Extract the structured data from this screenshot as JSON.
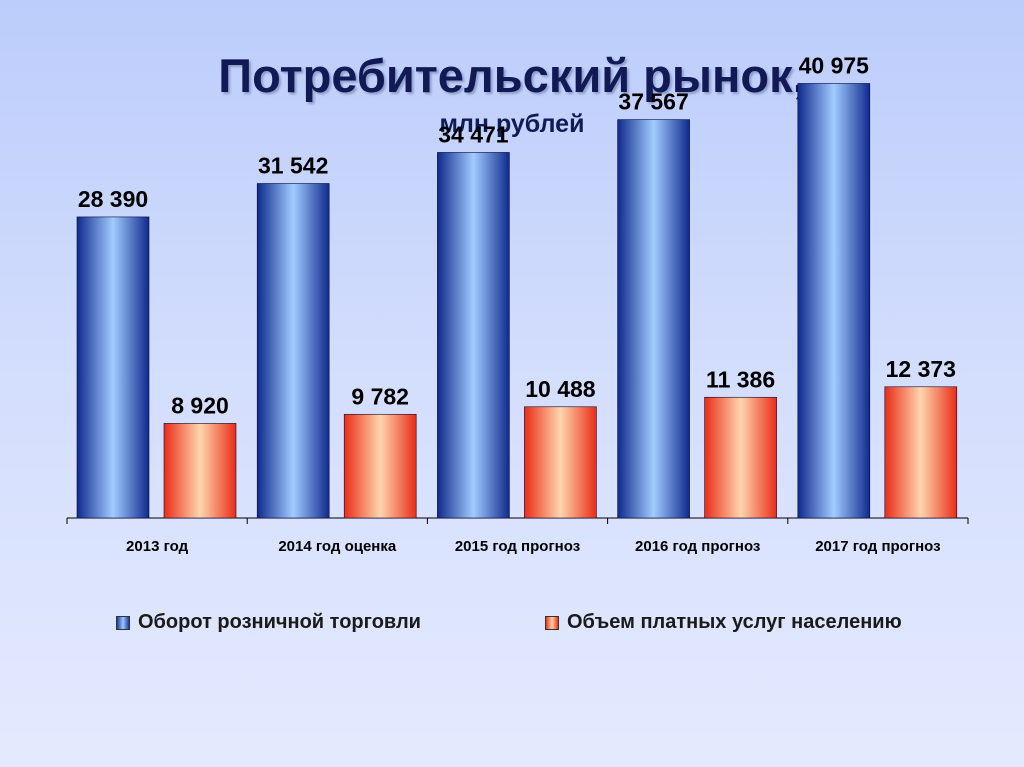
{
  "title": "Потребительский рынок,",
  "subtitle": "млн рублей",
  "chart_data": {
    "type": "bar",
    "categories": [
      "2013 год",
      "2014 год оценка",
      "2015 год прогноз",
      "2016 год прогноз",
      "2017 год прогноз"
    ],
    "series": [
      {
        "name": "Оборот розничной торговли",
        "values": [
          28390,
          31542,
          34471,
          37567,
          40975
        ],
        "labels": [
          "28 390",
          "31 542",
          "34 471",
          "37 567",
          "40 975"
        ],
        "color": "#2a55c8"
      },
      {
        "name": "Объем платных услуг населению",
        "values": [
          8920,
          9782,
          10488,
          11386,
          12373
        ],
        "labels": [
          "8 920",
          "9 782",
          "10 488",
          "11 386",
          "12 373"
        ],
        "color": "#f24a2a"
      }
    ],
    "ylim": [
      0,
      43000
    ],
    "legend": "bottom",
    "grid": false
  }
}
